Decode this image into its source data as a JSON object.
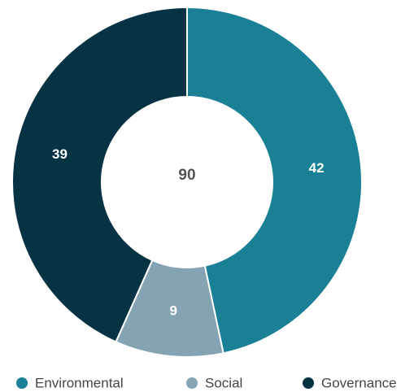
{
  "chart_data": {
    "type": "donut",
    "categories": [
      "Environmental",
      "Social",
      "Governance"
    ],
    "values": [
      42,
      9,
      39
    ],
    "colors": [
      "#1a8096",
      "#84a3b3",
      "#053344"
    ],
    "total": 90,
    "legend": "bottom"
  }
}
